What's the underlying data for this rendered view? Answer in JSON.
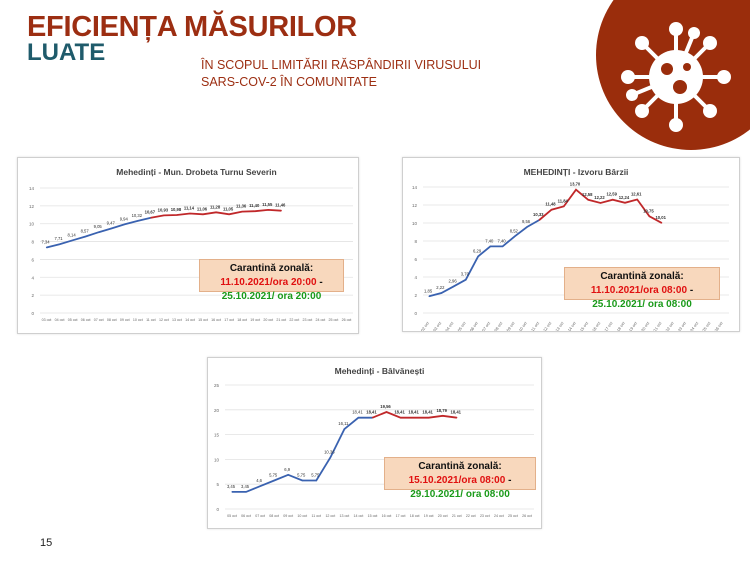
{
  "header": {
    "title_line1": "EFICIENȚA MĂSURILOR",
    "title_line2": "LUATE",
    "subtitle_line1": "ÎN SCOPUL LIMITĂRII RĂSPÂNDIRII VIRUSULUI",
    "subtitle_line2": "SARS-COV-2 ÎN COMUNITATE"
  },
  "logo": {
    "icon": "virus-icon",
    "color": "#9a2d0c"
  },
  "page_number": "15",
  "colors": {
    "before": "#3a62b0",
    "during": "#c0282a",
    "start_date": "#e01010",
    "end_date": "#1a9a1a"
  },
  "chart_data": [
    {
      "type": "line",
      "title": "Mehedinți - Mun. Drobeta Turnu Severin",
      "ylim": [
        0,
        14
      ],
      "yticks": [
        "0",
        "2",
        "4",
        "6",
        "8",
        "10",
        "12",
        "14"
      ],
      "categories": [
        "03 oct",
        "04 oct",
        "05 oct",
        "06 oct",
        "07 oct",
        "08 oct",
        "09 oct",
        "10 oct",
        "11 oct",
        "12 oct",
        "13 oct",
        "14 oct",
        "15 oct",
        "16 oct",
        "17 oct",
        "18 oct",
        "19 oct",
        "20 oct",
        "21 oct",
        "22 oct",
        "23 oct",
        "24 oct",
        "25 oct",
        "26 oct"
      ],
      "values": [
        7.34,
        7.71,
        8.14,
        8.57,
        9.05,
        9.47,
        9.94,
        10.32,
        10.67,
        10.93,
        10.98,
        11.14,
        11.06,
        11.28,
        11.05,
        11.36,
        11.4,
        11.55,
        11.46
      ],
      "labels": [
        "7,34",
        "7,71",
        "8,14",
        "8,57",
        "9,05",
        "9,47",
        "9,94",
        "10,32",
        "10,67",
        "10,93",
        "10,98",
        "11,14",
        "11,06",
        "11,28",
        "11,05",
        "11,36",
        "11,40",
        "11,55",
        "11,46"
      ],
      "quarantine_from_index": 8,
      "grid": true,
      "annotation": {
        "prefix": "Carantină zonală: ",
        "start": "11.10.2021/ora 20:00",
        "sep": " - ",
        "end": "25.10.2021/ ora 20:00"
      }
    },
    {
      "type": "line",
      "title": "MEHEDINȚI - Izvoru Bârzii",
      "ylim": [
        0,
        14
      ],
      "yticks": [
        "0",
        "2",
        "4",
        "6",
        "8",
        "10",
        "12",
        "14"
      ],
      "categories": [
        "02 oct",
        "03 oct",
        "04 oct",
        "05 oct",
        "06 oct",
        "07 oct",
        "08 oct",
        "09 oct",
        "10 oct",
        "11 oct",
        "12 oct",
        "13 oct",
        "14 oct",
        "15 oct",
        "16 oct",
        "17 oct",
        "18 oct",
        "19 oct",
        "20 oct",
        "21 oct",
        "22 oct",
        "23 oct",
        "24 oct",
        "25 oct",
        "26 oct"
      ],
      "values": [
        1.85,
        2.22,
        2.96,
        3.7,
        6.29,
        7.4,
        7.4,
        8.52,
        9.56,
        10.33,
        11.48,
        11.84,
        13.7,
        12.58,
        12.22,
        12.59,
        12.24,
        12.61,
        10.75,
        10.01
      ],
      "labels": [
        "1,85",
        "2,22",
        "2,96",
        "3,70",
        "6,29",
        "7,40",
        "7,40",
        "8,52",
        "9,56",
        "10,33",
        "11,48",
        "11,84",
        "13,70",
        "12,58",
        "12,22",
        "12,59",
        "12,24",
        "12,61",
        "10,75",
        "10,01"
      ],
      "quarantine_from_index": 9,
      "grid": true,
      "annotation": {
        "prefix": "Carantină zonală: ",
        "start": "11.10.2021/ora 08:00",
        "sep": " - ",
        "end": "25.10.2021/ ora 08:00"
      }
    },
    {
      "type": "line",
      "title": "Mehedinți - Bâlvănești",
      "ylim": [
        0,
        25
      ],
      "yticks": [
        "0",
        "5",
        "10",
        "15",
        "20",
        "25"
      ],
      "categories": [
        "05 oct",
        "06 oct",
        "07 oct",
        "08 oct",
        "09 oct",
        "10 oct",
        "11 oct",
        "12 oct",
        "13 oct",
        "14 oct",
        "15 oct",
        "16 oct",
        "17 oct",
        "18 oct",
        "19 oct",
        "20 oct",
        "21 oct",
        "22 oct",
        "23 oct",
        "24 oct",
        "25 oct",
        "26 oct"
      ],
      "values": [
        3.45,
        3.45,
        4.6,
        5.75,
        6.9,
        5.75,
        5.75,
        10.36,
        16.11,
        18.41,
        18.41,
        19.56,
        18.41,
        18.41,
        18.41,
        18.79,
        18.41
      ],
      "labels": [
        "3,45",
        "3,45",
        "4,6",
        "5,75",
        "6,9",
        "5,75",
        "5,75",
        "10,36",
        "16,11",
        "18,41",
        "18,41",
        "19,56",
        "18,41",
        "18,41",
        "18,41",
        "18,79",
        "18,41"
      ],
      "quarantine_from_index": 10,
      "grid": true,
      "annotation": {
        "prefix": "Carantină zonală: ",
        "start": "15.10.2021/ora 08:00",
        "sep": " - ",
        "end": "29.10.2021/ ora 08:00"
      }
    }
  ]
}
